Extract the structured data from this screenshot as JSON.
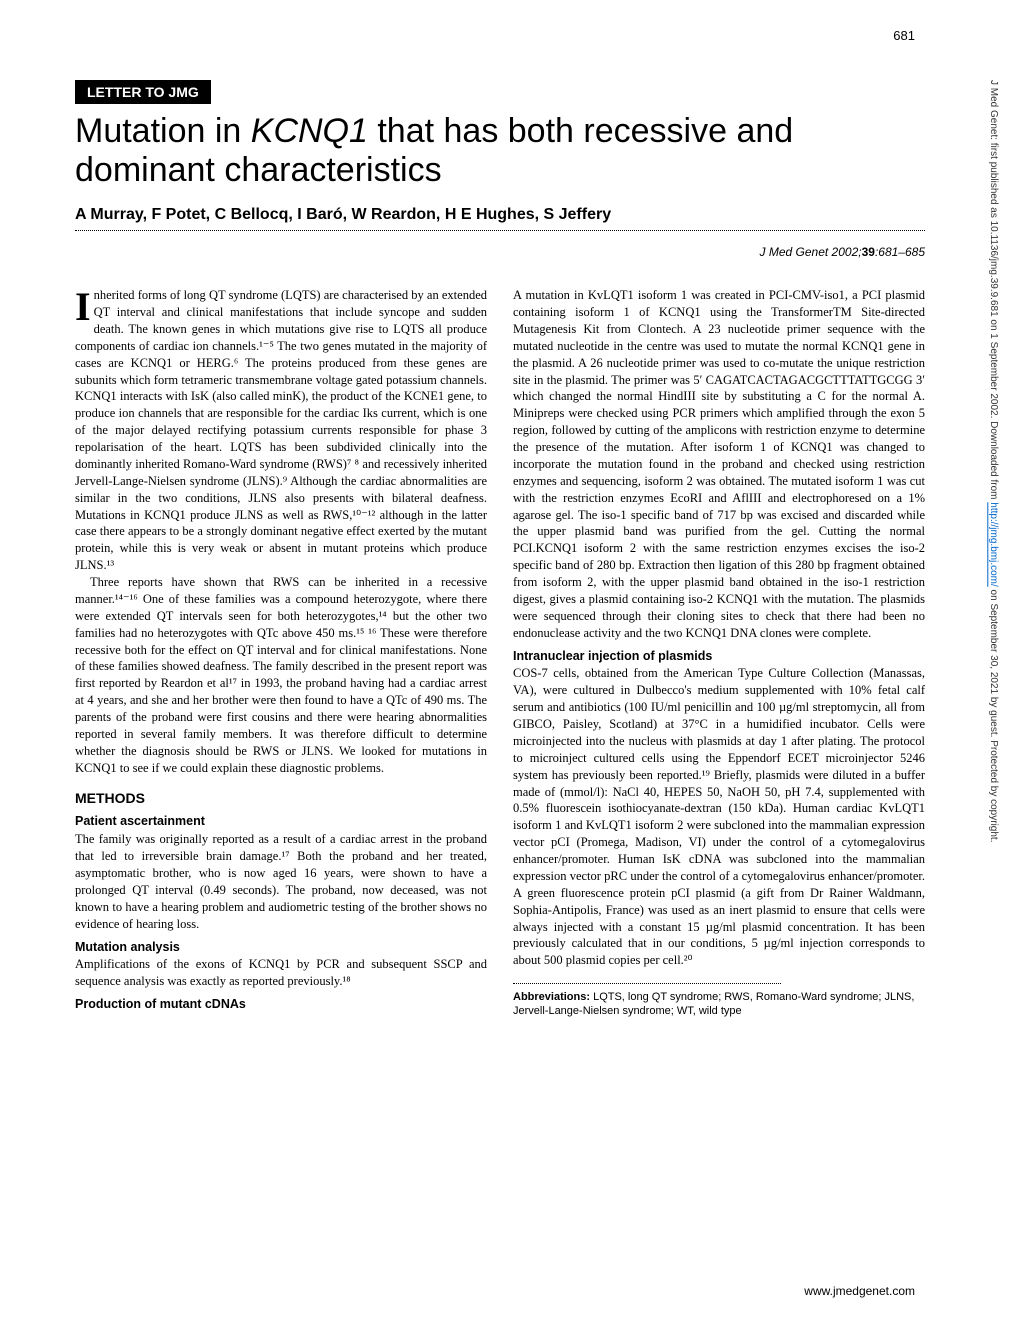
{
  "page_number": "681",
  "vertical_note_prefix": "J Med Genet: first published as 10.1136/jmg.39.9.681 on 1 September 2002. Downloaded from ",
  "vertical_note_link": "http://jmg.bmj.com/",
  "vertical_note_suffix": " on September 30, 2021 by guest. Protected by copyright.",
  "section_label": "LETTER TO JMG",
  "title_pre": "Mutation in ",
  "title_em": "KCNQ1",
  "title_post": " that has both recessive and dominant characteristics",
  "authors": "A Murray, F Potet, C Bellocq, I Baró, W Reardon, H E Hughes, S Jeffery",
  "citation_journal": "J Med Genet ",
  "citation_year": "2002;",
  "citation_vol": "39",
  "citation_pages": ":681–685",
  "intro_p1": "Inherited forms of long QT syndrome (LQTS) are characterised by an extended QT interval and clinical manifestations that include syncope and sudden death. The known genes in which mutations give rise to LQTS all produce components of cardiac ion channels.¹⁻⁵ The two genes mutated in the majority of cases are KCNQ1 or HERG.⁶ The proteins produced from these genes are subunits which form tetrameric transmembrane voltage gated potassium channels. KCNQ1 interacts with IsK (also called minK), the product of the KCNE1 gene, to produce ion channels that are responsible for the cardiac Iks current, which is one of the major delayed rectifying potassium currents responsible for phase 3 repolarisation of the heart. LQTS has been subdivided clinically into the dominantly inherited Romano-Ward syndrome (RWS)⁷ ⁸ and recessively inherited Jervell-Lange-Nielsen syndrome (JLNS).⁹ Although the cardiac abnormalities are similar in the two conditions, JLNS also presents with bilateral deafness. Mutations in KCNQ1 produce JLNS as well as RWS,¹⁰⁻¹² although in the latter case there appears to be a strongly dominant negative effect exerted by the mutant protein, while this is very weak or absent in mutant proteins which produce JLNS.¹³",
  "intro_p2": "Three reports have shown that RWS can be inherited in a recessive manner.¹⁴⁻¹⁶ One of these families was a compound heterozygote, where there were extended QT intervals seen for both heterozygotes,¹⁴ but the other two families had no heterozygotes with QTc above 450 ms.¹⁵ ¹⁶ These were therefore recessive both for the effect on QT interval and for clinical manifestations. None of these families showed deafness. The family described in the present report was first reported by Reardon et al¹⁷ in 1993, the proband having had a cardiac arrest at 4 years, and she and her brother were then found to have a QTc of 490 ms. The parents of the proband were first cousins and there were hearing abnormalities reported in several family members. It was therefore difficult to determine whether the diagnosis should be RWS or JLNS. We looked for mutations in KCNQ1 to see if we could explain these diagnostic problems.",
  "methods_heading": "METHODS",
  "h_patient": "Patient ascertainment",
  "p_patient": "The family was originally reported as a result of a cardiac arrest in the proband that led to irreversible brain damage.¹⁷ Both the proband and her treated, asymptomatic brother, who is now aged 16 years, were shown to have a prolonged QT interval (0.49 seconds). The proband, now deceased, was not known to have a hearing problem and audiometric testing of the brother shows no evidence of hearing loss.",
  "h_mutation": "Mutation analysis",
  "p_mutation": "Amplifications of the exons of KCNQ1 by PCR and subsequent SSCP and sequence analysis was exactly as reported previously.¹⁸",
  "h_cdnas": "Production of mutant cDNAs",
  "p_cdnas": "A mutation in KvLQT1 isoform 1 was created in PCI-CMV-iso1, a PCI plasmid containing isoform 1 of KCNQ1 using the TransformerTM Site-directed Mutagenesis Kit from Clontech. A 23 nucleotide primer sequence with the mutated nucleotide in the centre was used to mutate the normal KCNQ1 gene in the plasmid. A 26 nucleotide primer was used to co-mutate the unique restriction site in the plasmid. The primer was 5′ CAGATCACTAGACGCTTTATTGCGG 3′ which changed the normal HindIII site by substituting a C for the normal A. Minipreps were checked using PCR primers which amplified through the exon 5 region, followed by cutting of the amplicons with restriction enzyme to determine the presence of the mutation. After isoform 1 of KCNQ1 was changed to incorporate the mutation found in the proband and checked using restriction enzymes and sequencing, isoform 2 was obtained. The mutated isoform 1 was cut with the restriction enzymes EcoRI and AflIII and electrophoresed on a 1% agarose gel. The iso-1 specific band of 717 bp was excised and discarded while the upper plasmid band was purified from the gel. Cutting the normal PCI.KCNQ1 isoform 2 with the same restriction enzymes excises the iso-2 specific band of 280 bp. Extraction then ligation of this 280 bp fragment obtained from isoform 2, with the upper plasmid band obtained in the iso-1 restriction digest, gives a plasmid containing iso-2 KCNQ1 with the mutation. The plasmids were sequenced through their cloning sites to check that there had been no endonuclease activity and the two KCNQ1 DNA clones were complete.",
  "h_intranuclear": "Intranuclear injection of plasmids",
  "p_intranuclear": "COS-7 cells, obtained from the American Type Culture Collection (Manassas, VA), were cultured in Dulbecco's medium supplemented with 10% fetal calf serum and antibiotics (100 IU/ml penicillin and 100 µg/ml streptomycin, all from GIBCO, Paisley, Scotland) at 37°C in a humidified incubator. Cells were microinjected into the nucleus with plasmids at day 1 after plating. The protocol to microinject cultured cells using the Eppendorf ECET microinjector 5246 system has previously been reported.¹⁹ Briefly, plasmids were diluted in a buffer made of (mmol/l): NaCl 40, HEPES 50, NaOH 50, pH 7.4, supplemented with 0.5% fluorescein isothiocyanate-dextran (150 kDa). Human cardiac KvLQT1 isoform 1 and KvLQT1 isoform 2 were subcloned into the mammalian expression vector pCI (Promega, Madison, VI) under the control of a cytomegalovirus enhancer/promoter. Human IsK cDNA was subcloned into the mammalian expression vector pRC under the control of a cytomegalovirus enhancer/promoter. A green fluorescence protein pCI plasmid (a gift from Dr Rainer Waldmann, Sophia-Antipolis, France) was used as an inert plasmid to ensure that cells were always injected with a constant 15 µg/ml plasmid concentration. It has been previously calculated that in our conditions, 5 µg/ml injection corresponds to about 500 plasmid copies per cell.²⁰",
  "abbrev_label": "Abbreviations:",
  "abbrev_text": " LQTS, long QT syndrome; RWS, Romano-Ward syndrome; JLNS, Jervell-Lange-Nielsen syndrome; WT, wild type",
  "footer_url": "www.jmedgenet.com"
}
